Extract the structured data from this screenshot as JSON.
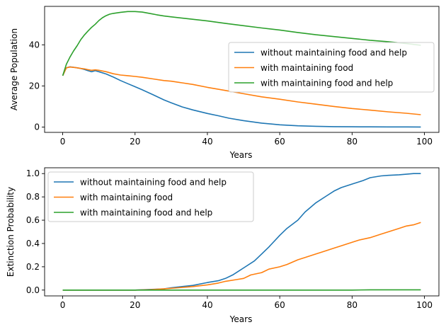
{
  "chart_data": [
    {
      "type": "line",
      "title": "",
      "xlabel": "Years",
      "ylabel": "Average Population",
      "xlim": [
        -5,
        104
      ],
      "ylim": [
        -2.6,
        58.7
      ],
      "xticks": [
        0,
        20,
        40,
        60,
        80,
        100
      ],
      "yticks": [
        0,
        20,
        40
      ],
      "ytick_labels": [
        "0",
        "20",
        "40"
      ],
      "grid": false,
      "legend_position": "center-right",
      "series": [
        {
          "name": "without maintaining food and help",
          "color": "#1f77b4",
          "x": [
            0,
            1,
            2,
            3,
            4,
            5,
            6,
            7,
            8,
            9,
            10,
            12,
            14,
            16,
            18,
            20,
            22,
            25,
            28,
            30,
            33,
            36,
            40,
            43,
            46,
            50,
            55,
            60,
            65,
            70,
            75,
            80,
            85,
            90,
            95,
            99
          ],
          "values": [
            25.0,
            28.8,
            29.3,
            29.1,
            28.8,
            28.5,
            28.0,
            27.4,
            26.9,
            27.4,
            26.9,
            25.8,
            24.3,
            22.6,
            21.1,
            19.6,
            18.1,
            15.7,
            13.2,
            11.8,
            9.8,
            8.3,
            6.6,
            5.5,
            4.3,
            3.1,
            1.9,
            1.1,
            0.6,
            0.35,
            0.2,
            0.12,
            0.08,
            0.05,
            0.04,
            0.03
          ]
        },
        {
          "name": "with maintaining food",
          "color": "#ff7f0e",
          "x": [
            0,
            1,
            2,
            3,
            4,
            5,
            6,
            7,
            8,
            9,
            10,
            12,
            14,
            16,
            18,
            20,
            22,
            25,
            28,
            30,
            33,
            36,
            40,
            45,
            50,
            55,
            60,
            65,
            70,
            75,
            80,
            85,
            90,
            95,
            99
          ],
          "values": [
            25.0,
            28.8,
            29.2,
            29.0,
            28.8,
            28.5,
            28.3,
            27.9,
            27.6,
            27.8,
            27.6,
            26.9,
            25.9,
            25.3,
            25.0,
            24.6,
            24.2,
            23.4,
            22.6,
            22.3,
            21.5,
            20.7,
            19.3,
            17.8,
            16.2,
            14.7,
            13.5,
            12.2,
            11.1,
            10.0,
            9.0,
            8.2,
            7.4,
            6.7,
            6.0
          ]
        },
        {
          "name": "with maintaining food and help",
          "color": "#2ca02c",
          "x": [
            0,
            1,
            2,
            3,
            4,
            5,
            6,
            7,
            8,
            9,
            10,
            11,
            12,
            13,
            14,
            16,
            18,
            20,
            22,
            24,
            26,
            28,
            30,
            35,
            40,
            45,
            50,
            55,
            60,
            65,
            70,
            75,
            80,
            85,
            90,
            95,
            99
          ],
          "values": [
            25.0,
            30.5,
            34.0,
            37.0,
            39.6,
            42.5,
            44.8,
            46.7,
            48.5,
            50.0,
            51.8,
            53.2,
            54.2,
            54.9,
            55.3,
            55.8,
            56.2,
            56.2,
            55.9,
            55.3,
            54.6,
            54.0,
            53.6,
            52.6,
            51.6,
            50.4,
            49.3,
            48.2,
            47.2,
            46.0,
            44.9,
            44.0,
            43.1,
            42.2,
            41.5,
            40.6,
            39.8
          ]
        }
      ]
    },
    {
      "type": "line",
      "title": "",
      "xlabel": "Years",
      "ylabel": "Extinction Probability",
      "xlim": [
        -5,
        104
      ],
      "ylim": [
        -0.05,
        1.05
      ],
      "xticks": [
        0,
        20,
        40,
        60,
        80,
        100
      ],
      "yticks": [
        0.0,
        0.2,
        0.4,
        0.6,
        0.8,
        1.0
      ],
      "ytick_labels": [
        "0.0",
        "0.2",
        "0.4",
        "0.6",
        "0.8",
        "1.0"
      ],
      "grid": false,
      "legend_position": "top-left",
      "series": [
        {
          "name": "without maintaining food and help",
          "color": "#1f77b4",
          "x": [
            0,
            20,
            24,
            28,
            30,
            33,
            36,
            40,
            43,
            45,
            47,
            50,
            53,
            55,
            57,
            60,
            62,
            65,
            67,
            70,
            73,
            75,
            77,
            80,
            83,
            85,
            88,
            90,
            93,
            95,
            97,
            99
          ],
          "values": [
            0.0,
            0.0,
            0.005,
            0.01,
            0.02,
            0.03,
            0.04,
            0.065,
            0.08,
            0.1,
            0.13,
            0.19,
            0.25,
            0.31,
            0.37,
            0.47,
            0.53,
            0.6,
            0.67,
            0.75,
            0.81,
            0.85,
            0.88,
            0.91,
            0.94,
            0.965,
            0.98,
            0.985,
            0.99,
            0.995,
            1.0,
            1.0
          ]
        },
        {
          "name": "with maintaining food",
          "color": "#ff7f0e",
          "x": [
            0,
            20,
            24,
            28,
            32,
            36,
            40,
            43,
            45,
            48,
            50,
            52,
            55,
            57,
            60,
            62,
            65,
            67,
            70,
            72,
            75,
            77,
            80,
            82,
            85,
            88,
            90,
            93,
            95,
            97,
            99
          ],
          "values": [
            0.0,
            0.0,
            0.003,
            0.01,
            0.02,
            0.03,
            0.045,
            0.06,
            0.075,
            0.09,
            0.1,
            0.13,
            0.15,
            0.18,
            0.2,
            0.22,
            0.26,
            0.28,
            0.31,
            0.33,
            0.36,
            0.38,
            0.41,
            0.43,
            0.45,
            0.48,
            0.5,
            0.53,
            0.55,
            0.56,
            0.58
          ]
        },
        {
          "name": "with maintaining food and help",
          "color": "#2ca02c",
          "x": [
            0,
            80,
            85,
            99
          ],
          "values": [
            0.0,
            0.0,
            0.002,
            0.002
          ]
        }
      ]
    }
  ]
}
